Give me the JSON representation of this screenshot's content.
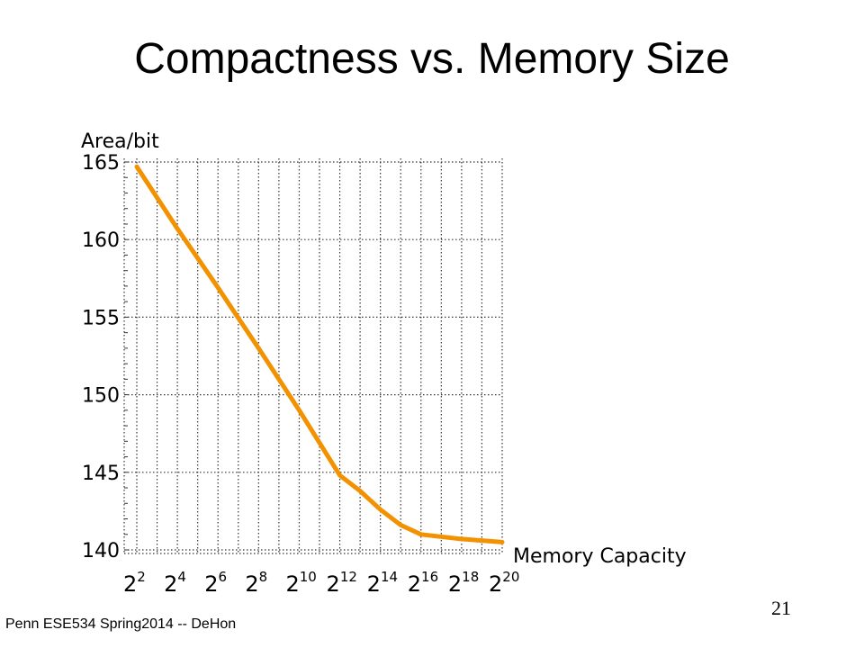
{
  "slide": {
    "title": "Compactness vs. Memory Size",
    "footer": "Penn ESE534 Spring2014 -- DeHon",
    "page_number": "21"
  },
  "colors": {
    "series_line": "#f39200",
    "grid": "#333333",
    "text": "#000000",
    "background": "#ffffff"
  },
  "chart_data": {
    "type": "line",
    "ylabel": "Area/bit",
    "xlabel": "Memory Capacity",
    "x_scale": "log2",
    "x_base": "2",
    "x_tick_exponents": [
      "2",
      "4",
      "6",
      "8",
      "10",
      "12",
      "14",
      "16",
      "18",
      "20"
    ],
    "x_range_exponent": [
      2,
      20
    ],
    "ylim": [
      140,
      165
    ],
    "y_ticks": [
      140,
      145,
      150,
      155,
      160,
      165
    ],
    "grid": true,
    "grid_style": "dotted",
    "series": [
      {
        "x_exponent": [
          2,
          4,
          6,
          8,
          10,
          12,
          13,
          14,
          15,
          16,
          18,
          20
        ],
        "y": [
          164.7,
          160.7,
          156.9,
          153.0,
          149.0,
          144.8,
          143.8,
          142.6,
          141.6,
          141.0,
          140.7,
          140.5
        ]
      }
    ]
  }
}
